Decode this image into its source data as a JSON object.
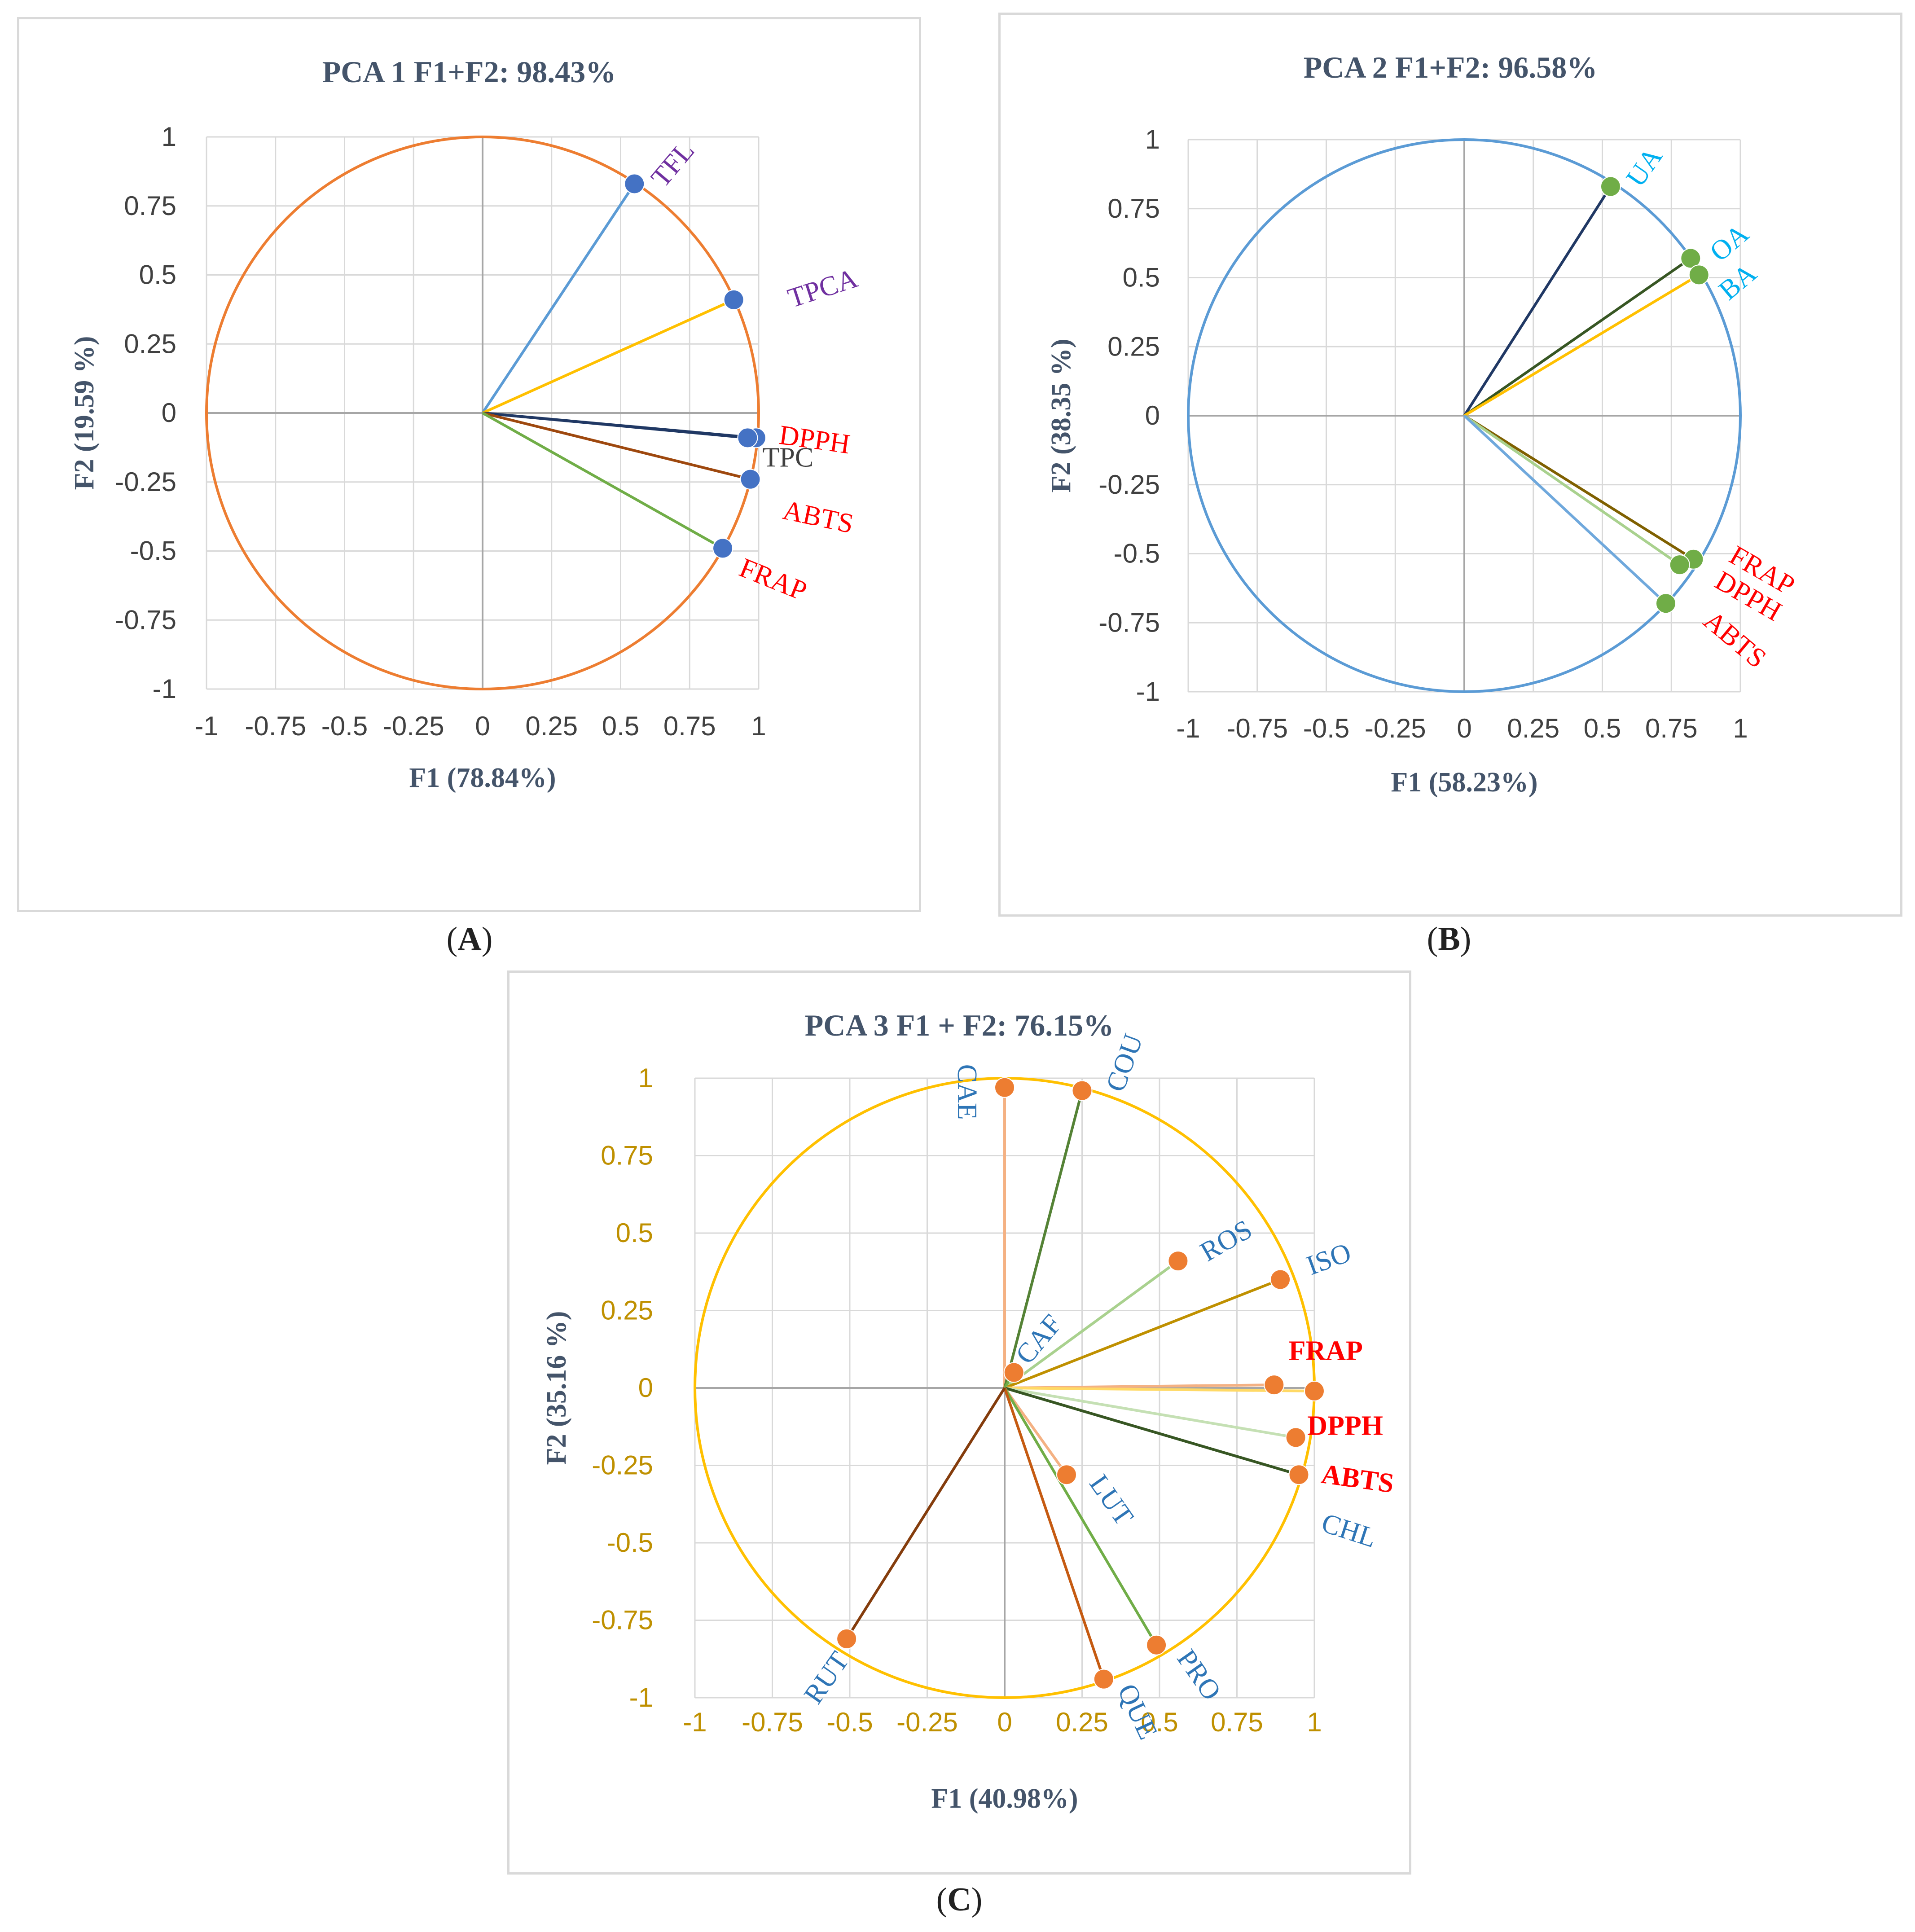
{
  "panels": [
    {
      "id": "a",
      "letter": "A",
      "chart_data": {
        "type": "scatter",
        "subtype": "pca-correlation-circle",
        "title": "PCA 1 F1+F2: 98.43%",
        "xlabel": "F1 (78.84%)",
        "ylabel": "F2 (19.59 %)",
        "xlim": [
          -1,
          1
        ],
        "ylim": [
          -1,
          1
        ],
        "xticks": [
          "-1",
          "-0.75",
          "-0.5",
          "-0.25",
          "0",
          "0.25",
          "0.5",
          "0.75",
          "1"
        ],
        "yticks": [
          "1",
          "0.75",
          "0.5",
          "0.25",
          "0",
          "-0.25",
          "-0.5",
          "-0.75",
          "-1"
        ],
        "grid": true,
        "circle_color": "#ED7D31",
        "axis_tick_color": "#404040",
        "marker_color": "#4472C4",
        "variables": [
          {
            "name": "TFL",
            "x": 0.55,
            "y": 0.83,
            "line_color": "#5B9BD5",
            "label_color": "#7030A0"
          },
          {
            "name": "TPCA",
            "x": 0.91,
            "y": 0.41,
            "line_color": "#FFC000",
            "label_color": "#7030A0"
          },
          {
            "name": "DPPH",
            "x": 0.99,
            "y": -0.09,
            "line_color": "#1F3864",
            "label_color": "#FF0000"
          },
          {
            "name": "TPC",
            "x": 0.96,
            "y": -0.09,
            "line_color": "#203864",
            "label_color": "#404040"
          },
          {
            "name": "ABTS",
            "x": 0.97,
            "y": -0.24,
            "line_color": "#9E480E",
            "label_color": "#FF0000"
          },
          {
            "name": "FRAP",
            "x": 0.87,
            "y": -0.49,
            "line_color": "#70AD47",
            "label_color": "#FF0000"
          }
        ]
      }
    },
    {
      "id": "b",
      "letter": "B",
      "chart_data": {
        "type": "scatter",
        "subtype": "pca-correlation-circle",
        "title": "PCA 2 F1+F2: 96.58%",
        "xlabel": "F1 (58.23%)",
        "ylabel": "F2 (38.35 %)",
        "xlim": [
          -1,
          1
        ],
        "ylim": [
          -1,
          1
        ],
        "xticks": [
          "-1",
          "-0.75",
          "-0.5",
          "-0.25",
          "0",
          "0.25",
          "0.5",
          "0.75",
          "1"
        ],
        "yticks": [
          "1",
          "0.75",
          "0.5",
          "0.25",
          "0",
          "-0.25",
          "-0.5",
          "-0.75",
          "-1"
        ],
        "grid": true,
        "circle_color": "#5B9BD5",
        "axis_tick_color": "#404040",
        "marker_color": "#70AD47",
        "variables": [
          {
            "name": "UA",
            "x": 0.53,
            "y": 0.83,
            "line_color": "#203864",
            "label_color": "#00B0F0"
          },
          {
            "name": "OA",
            "x": 0.82,
            "y": 0.57,
            "line_color": "#375623",
            "label_color": "#00B0F0"
          },
          {
            "name": "BA",
            "x": 0.85,
            "y": 0.51,
            "line_color": "#FFC000",
            "label_color": "#00B0F0"
          },
          {
            "name": "FRAP",
            "x": 0.83,
            "y": -0.52,
            "line_color": "#7F6000",
            "label_color": "#FF0000"
          },
          {
            "name": "DPPH",
            "x": 0.78,
            "y": -0.54,
            "line_color": "#A9D18E",
            "label_color": "#FF0000"
          },
          {
            "name": "ABTS",
            "x": 0.73,
            "y": -0.68,
            "line_color": "#6FA8DC",
            "label_color": "#FF0000"
          }
        ]
      }
    },
    {
      "id": "c",
      "letter": "C",
      "chart_data": {
        "type": "scatter",
        "subtype": "pca-correlation-circle",
        "title": "PCA 3 F1 + F2: 76.15%",
        "xlabel": "F1 (40.98%)",
        "ylabel": "F2 (35.16 %)",
        "xlim": [
          -1,
          1
        ],
        "ylim": [
          -1,
          1
        ],
        "xticks": [
          "-1",
          "-0.75",
          "-0.5",
          "-0.25",
          "0",
          "0.25",
          "0.5",
          "0.75",
          "1"
        ],
        "yticks": [
          "1",
          "0.75",
          "0.5",
          "0.25",
          "0",
          "-0.25",
          "-0.5",
          "-0.75",
          "-1"
        ],
        "grid": true,
        "circle_color": "#FFC000",
        "axis_tick_color": "#BF9000",
        "marker_color": "#ED7D31",
        "variables": [
          {
            "name": "CAE",
            "x": 0.0,
            "y": 0.97,
            "line_color": "#F4B183",
            "label_color": "#2E75B6"
          },
          {
            "name": "COU",
            "x": 0.25,
            "y": 0.96,
            "line_color": "#548235",
            "label_color": "#2E75B6"
          },
          {
            "name": "ROS",
            "x": 0.56,
            "y": 0.41,
            "line_color": "#A9D18E",
            "label_color": "#2E75B6"
          },
          {
            "name": "ISO",
            "x": 0.89,
            "y": 0.35,
            "line_color": "#BF9000",
            "label_color": "#2E75B6"
          },
          {
            "name": "CAF",
            "x": 0.03,
            "y": 0.05,
            "line_color": "#70AD47",
            "label_color": "#2E75B6"
          },
          {
            "name": "FRAP",
            "x": 0.87,
            "y": 0.01,
            "line_color": "#F4B183",
            "label_color": "#FF0000"
          },
          {
            "name": "",
            "x": 1.0,
            "y": -0.01,
            "line_color": "#FFD966",
            "label_color": "#FF0000"
          },
          {
            "name": "DPPH",
            "x": 0.94,
            "y": -0.16,
            "line_color": "#C5E0B4",
            "label_color": "#FF0000"
          },
          {
            "name": "ABTS",
            "x": 0.95,
            "y": -0.28,
            "line_color": "#375623",
            "label_color": "#FF0000"
          },
          {
            "name": "CHL",
            "x": 0.95,
            "y": -0.28,
            "line_color": "#375623",
            "label_color": "#2E75B6"
          },
          {
            "name": "LUT",
            "x": 0.2,
            "y": -0.28,
            "line_color": "#F4B183",
            "label_color": "#2E75B6"
          },
          {
            "name": "PRO",
            "x": 0.49,
            "y": -0.83,
            "line_color": "#70AD47",
            "label_color": "#2E75B6"
          },
          {
            "name": "QUE",
            "x": 0.32,
            "y": -0.94,
            "line_color": "#C55A11",
            "label_color": "#2E75B6"
          },
          {
            "name": "RUT",
            "x": -0.51,
            "y": -0.81,
            "line_color": "#843C0C",
            "label_color": "#2E75B6"
          }
        ]
      }
    }
  ]
}
